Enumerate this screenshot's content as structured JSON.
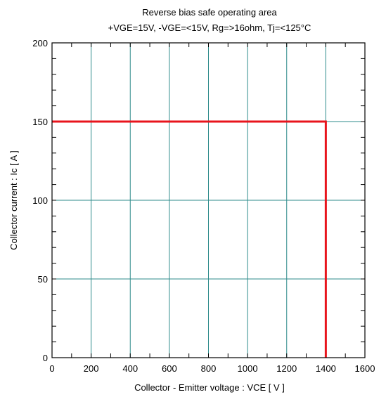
{
  "chart_data": {
    "type": "line",
    "title": "Reverse bias safe operating area",
    "subtitle": "+VGE=15V, -VGE=<15V, Rg=>16ohm, Tj=<125°C",
    "xlabel": "Collector - Emitter voltage  :  VCE  [ V ]",
    "ylabel": "Collector current  : Ic  [ A ]",
    "xlim": [
      0,
      1600
    ],
    "ylim": [
      0,
      200
    ],
    "xticks": [
      0,
      200,
      400,
      600,
      800,
      1000,
      1200,
      1400,
      1600
    ],
    "yticks": [
      0,
      50,
      100,
      150,
      200
    ],
    "grid": true,
    "grid_color": "#2e8b8b",
    "series": [
      {
        "color": "#e8141c",
        "x": [
          0,
          1400,
          1400
        ],
        "y": [
          150,
          150,
          0
        ]
      }
    ]
  }
}
